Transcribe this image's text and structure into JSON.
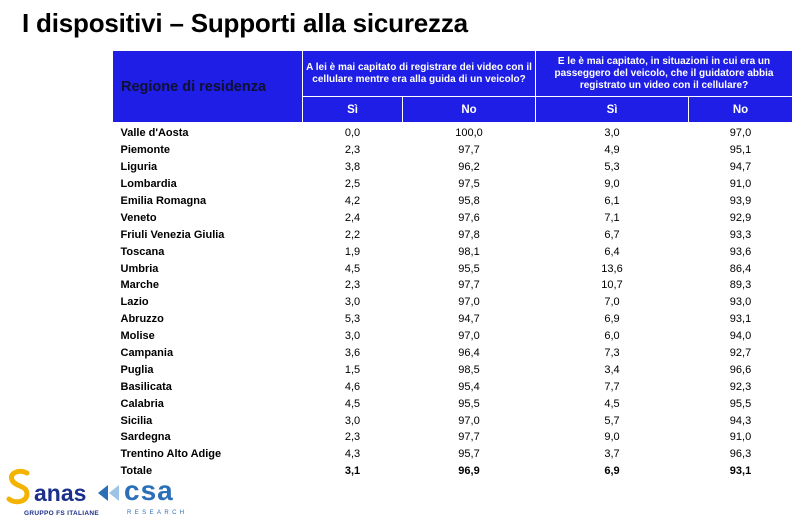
{
  "title": "I dispositivi – Supporti alla sicurezza",
  "table": {
    "region_header": "Regione di residenza",
    "question1": "A lei è mai capitato di registrare dei video con il cellulare mentre era alla guida di un veicolo?",
    "question2": "E le è mai capitato, in situazioni in cui era un passeggero del veicolo, che il guidatore abbia registrato un video con il cellulare?",
    "si_label": "Sì",
    "no_label": "No",
    "rows": [
      {
        "region": "Valle d'Aosta",
        "q1_si": "0,0",
        "q1_no": "100,0",
        "q2_si": "3,0",
        "q2_no": "97,0"
      },
      {
        "region": "Piemonte",
        "q1_si": "2,3",
        "q1_no": "97,7",
        "q2_si": "4,9",
        "q2_no": "95,1"
      },
      {
        "region": "Liguria",
        "q1_si": "3,8",
        "q1_no": "96,2",
        "q2_si": "5,3",
        "q2_no": "94,7"
      },
      {
        "region": "Lombardia",
        "q1_si": "2,5",
        "q1_no": "97,5",
        "q2_si": "9,0",
        "q2_no": "91,0"
      },
      {
        "region": "Emilia Romagna",
        "q1_si": "4,2",
        "q1_no": "95,8",
        "q2_si": "6,1",
        "q2_no": "93,9"
      },
      {
        "region": "Veneto",
        "q1_si": "2,4",
        "q1_no": "97,6",
        "q2_si": "7,1",
        "q2_no": "92,9"
      },
      {
        "region": "Friuli Venezia Giulia",
        "q1_si": "2,2",
        "q1_no": "97,8",
        "q2_si": "6,7",
        "q2_no": "93,3"
      },
      {
        "region": "Toscana",
        "q1_si": "1,9",
        "q1_no": "98,1",
        "q2_si": "6,4",
        "q2_no": "93,6"
      },
      {
        "region": "Umbria",
        "q1_si": "4,5",
        "q1_no": "95,5",
        "q2_si": "13,6",
        "q2_no": "86,4"
      },
      {
        "region": "Marche",
        "q1_si": "2,3",
        "q1_no": "97,7",
        "q2_si": "10,7",
        "q2_no": "89,3"
      },
      {
        "region": "Lazio",
        "q1_si": "3,0",
        "q1_no": "97,0",
        "q2_si": "7,0",
        "q2_no": "93,0"
      },
      {
        "region": "Abruzzo",
        "q1_si": "5,3",
        "q1_no": "94,7",
        "q2_si": "6,9",
        "q2_no": "93,1"
      },
      {
        "region": "Molise",
        "q1_si": "3,0",
        "q1_no": "97,0",
        "q2_si": "6,0",
        "q2_no": "94,0"
      },
      {
        "region": "Campania",
        "q1_si": "3,6",
        "q1_no": "96,4",
        "q2_si": "7,3",
        "q2_no": "92,7"
      },
      {
        "region": "Puglia",
        "q1_si": "1,5",
        "q1_no": "98,5",
        "q2_si": "3,4",
        "q2_no": "96,6"
      },
      {
        "region": "Basilicata",
        "q1_si": "4,6",
        "q1_no": "95,4",
        "q2_si": "7,7",
        "q2_no": "92,3"
      },
      {
        "region": "Calabria",
        "q1_si": "4,5",
        "q1_no": "95,5",
        "q2_si": "4,5",
        "q2_no": "95,5"
      },
      {
        "region": "Sicilia",
        "q1_si": "3,0",
        "q1_no": "97,0",
        "q2_si": "5,7",
        "q2_no": "94,3"
      },
      {
        "region": "Sardegna",
        "q1_si": "2,3",
        "q1_no": "97,7",
        "q2_si": "9,0",
        "q2_no": "91,0"
      },
      {
        "region": "Trentino Alto Adige",
        "q1_si": "4,3",
        "q1_no": "95,7",
        "q2_si": "3,7",
        "q2_no": "96,3"
      }
    ],
    "total": {
      "region": "Totale",
      "q1_si": "3,1",
      "q1_no": "96,9",
      "q2_si": "6,9",
      "q2_no": "93,1"
    }
  },
  "logos": {
    "anas_name": "anas",
    "anas_tagline": "GRUPPO FS ITALIANE",
    "csa_name": "csa",
    "csa_tagline": "RESEARCH",
    "anas_color": "#1c2f8a",
    "csa_color": "#2b6fb7",
    "header_blue": "#1e1ee6"
  }
}
